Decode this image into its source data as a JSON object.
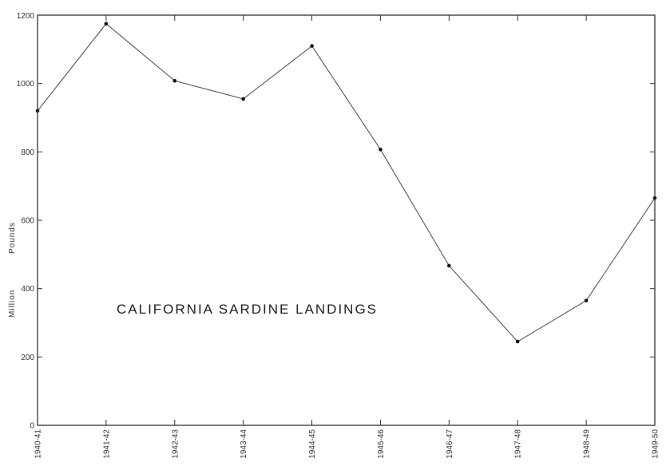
{
  "chart_data": {
    "type": "line",
    "title": "CALIFORNIA SARDINE LANDINGS",
    "xlabel": "",
    "ylabel_parts": [
      "Million",
      "Pounds"
    ],
    "categories": [
      "1940-41",
      "1941-42",
      "1942-43",
      "1943-44",
      "1944-45",
      "1945-46",
      "1946-47",
      "1947-48",
      "1948-49",
      "1949-50"
    ],
    "series": [
      {
        "values": [
          920,
          1175,
          1008,
          955,
          1110,
          807,
          467,
          245,
          365,
          665
        ]
      }
    ],
    "ylim": [
      0,
      1200
    ],
    "yticks": [
      0,
      200,
      400,
      600,
      800,
      1000,
      1200
    ],
    "grid": false,
    "legend": "none",
    "line_color": "#555555",
    "marker_color": "#111111"
  }
}
